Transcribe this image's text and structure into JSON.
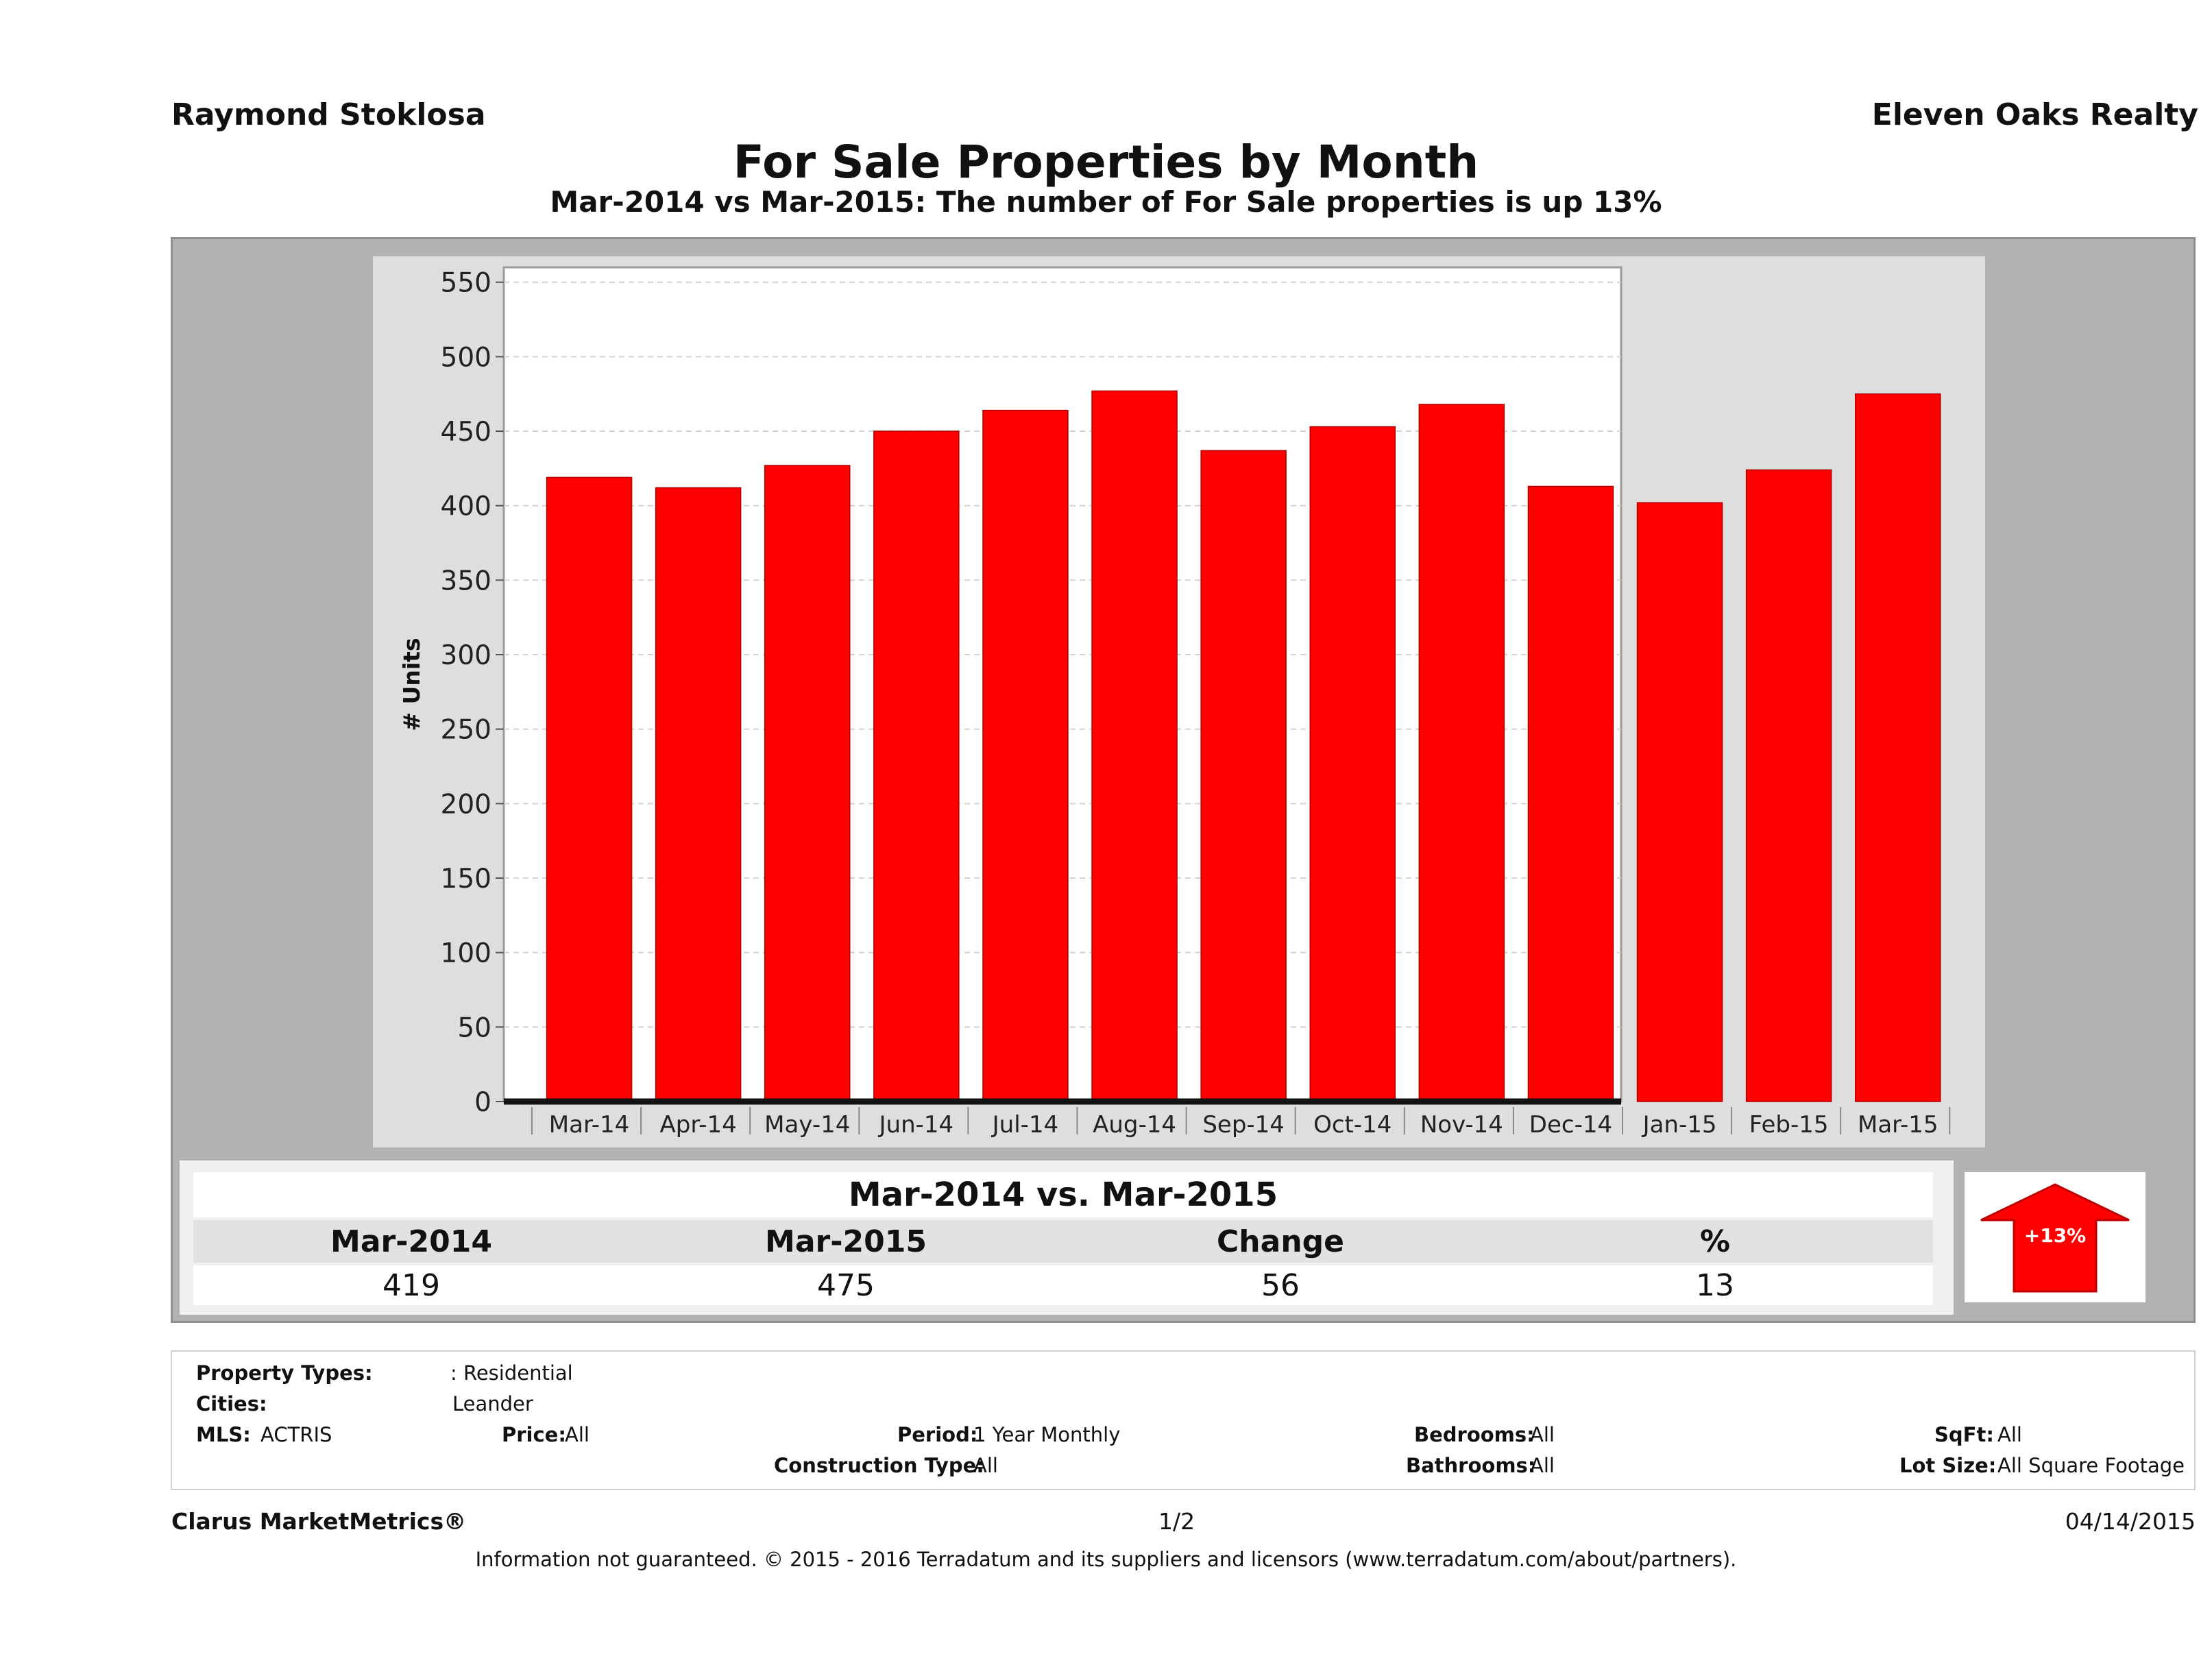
{
  "header": {
    "agent": "Raymond Stoklosa",
    "brokerage": "Eleven Oaks Realty",
    "title": "For Sale Properties by Month",
    "subtitle": "Mar-2014 vs Mar-2015: The number of For Sale  properties is up 13%"
  },
  "chart_data": {
    "type": "bar",
    "title": "For Sale Properties by Month",
    "ylabel": "# Units",
    "xlabel": "",
    "ylim": [
      0,
      560
    ],
    "yticks": [
      0,
      50,
      100,
      150,
      200,
      250,
      300,
      350,
      400,
      450,
      500,
      550
    ],
    "grid": true,
    "categories": [
      "Mar-14",
      "Apr-14",
      "May-14",
      "Jun-14",
      "Jul-14",
      "Aug-14",
      "Sep-14",
      "Oct-14",
      "Nov-14",
      "Dec-14",
      "Jan-15",
      "Feb-15",
      "Mar-15"
    ],
    "values": [
      419,
      412,
      427,
      450,
      464,
      477,
      437,
      453,
      468,
      413,
      402,
      424,
      475
    ],
    "bar_color": "#ff0000",
    "plot_bg": "#ffffff",
    "panel_bg": "#dedede"
  },
  "summary": {
    "title": "Mar-2014 vs. Mar-2015",
    "headers": [
      "Mar-2014",
      "Mar-2015",
      "Change",
      "%"
    ],
    "values": [
      "419",
      "475",
      "56",
      "13"
    ],
    "badge": "+13%",
    "badge_icon": "up-arrow-icon",
    "badge_color": "#ff0000"
  },
  "criteria": {
    "property_types_label": "Property Types:",
    "property_types_value": ": Residential",
    "cities_label": "Cities:",
    "cities_value": "Leander",
    "mls_label": "MLS:",
    "mls_value": "ACTRIS",
    "price_label": "Price:",
    "price_value": "All",
    "period_label": "Period:",
    "period_value": "1 Year Monthly",
    "construction_label": "Construction Type:",
    "construction_value": "All",
    "bedrooms_label": "Bedrooms:",
    "bedrooms_value": "All",
    "bathrooms_label": "Bathrooms:",
    "bathrooms_value": "All",
    "sqft_label": "SqFt:",
    "sqft_value": "All",
    "lot_label": "Lot Size:",
    "lot_value": "All Square Footage"
  },
  "footer": {
    "brand": "Clarus MarketMetrics®",
    "page": "1/2",
    "date": "04/14/2015",
    "disclaimer": "Information not guaranteed. © 2015 - 2016 Terradatum and its suppliers and licensors (www.terradatum.com/about/partners)."
  }
}
